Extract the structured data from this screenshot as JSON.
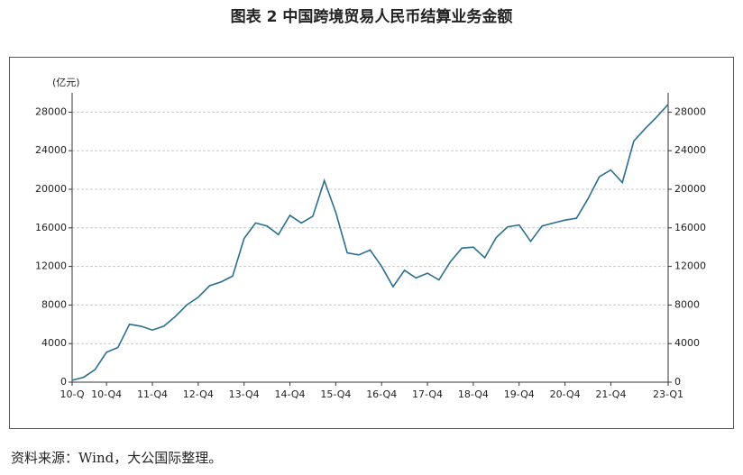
{
  "chart_data": {
    "type": "line",
    "title": "图表 2 中国跨境贸易人民币结算业务金额",
    "y_label": "(亿元)",
    "source": "资料来源：Wind，大公国际整理。",
    "categories": [
      "10-Q",
      null,
      null,
      "10-Q4",
      null,
      null,
      null,
      "11-Q4",
      null,
      null,
      null,
      "12-Q4",
      null,
      null,
      null,
      "13-Q4",
      null,
      null,
      null,
      "14-Q4",
      null,
      null,
      null,
      "15-Q4",
      null,
      null,
      null,
      "16-Q4",
      null,
      null,
      null,
      "17-Q4",
      null,
      null,
      null,
      "18-Q4",
      null,
      null,
      null,
      "19-Q4",
      null,
      null,
      null,
      "20-Q4",
      null,
      null,
      null,
      "21-Q4",
      null,
      null,
      null,
      null,
      "23-Q1"
    ],
    "values": [
      200,
      500,
      1300,
      3100,
      3600,
      6000,
      5800,
      5400,
      5800,
      6800,
      8000,
      8800,
      10000,
      10400,
      11000,
      14900,
      16500,
      16200,
      15300,
      17300,
      16500,
      17200,
      20900,
      17600,
      13400,
      13200,
      13700,
      12000,
      9900,
      11600,
      10800,
      11300,
      10600,
      12500,
      13900,
      14000,
      12900,
      15000,
      16100,
      16300,
      14600,
      16200,
      16500,
      16800,
      17000,
      19000,
      21300,
      22000,
      20700,
      25000,
      26300,
      27500,
      28800
    ],
    "color": "#2b6f8e",
    "ylim": [
      0,
      30000
    ],
    "yticks": [
      0,
      4000,
      8000,
      12000,
      16000,
      20000,
      24000,
      28000
    ],
    "grid": true
  }
}
